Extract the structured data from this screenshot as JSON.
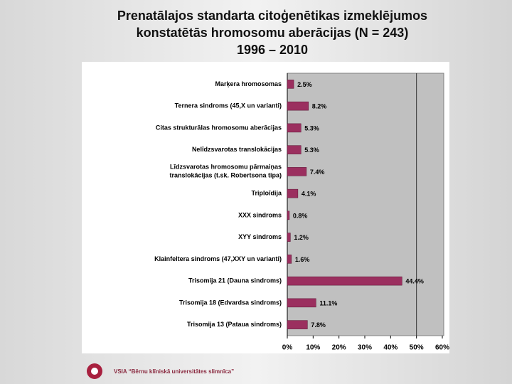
{
  "chart_data": {
    "type": "barh",
    "title": [
      "Prenatālajos standarta citoģenētikas izmeklējumos",
      "konstatētās hromosomu aberācijas (N = 243)",
      "1996 – 2010"
    ],
    "categories": [
      "Marķera hromosomas",
      "Ternera sindroms (45,X un varianti)",
      "Citas strukturālas hromosomu aberācijas",
      "Nelīdzsvarotas translokācijas",
      "Līdzsvarotas hromosomu pārmaiņas\ntranslokācijas (t.sk. Robertsona tipa)",
      "Triploīdija",
      "XXX sindroms",
      "XYY sindroms",
      "Klainfeltera sindroms (47,XXY un varianti)",
      "Trisomija 21 (Dauna sindroms)",
      "Trisomija 18 (Edvardsa sindroms)",
      "Trisomija 13 (Pataua sindroms)"
    ],
    "values": [
      2.5,
      8.2,
      5.3,
      5.3,
      7.4,
      4.1,
      0.8,
      1.2,
      1.6,
      44.4,
      11.1,
      7.8
    ],
    "value_labels": [
      "2.5%",
      "8.2%",
      "5.3%",
      "5.3%",
      "7.4%",
      "4.1%",
      "0.8%",
      "1.2%",
      "1.6%",
      "44.4%",
      "11.1%",
      "7.8%"
    ],
    "color": "#9b2f5f",
    "xlim": [
      0,
      60
    ],
    "xticks": [
      {
        "value": 0,
        "label": "0%"
      },
      {
        "value": 10,
        "label": "10%"
      },
      {
        "value": 20,
        "label": "20%"
      },
      {
        "value": 30,
        "label": "30%"
      },
      {
        "value": 40,
        "label": "40%"
      },
      {
        "value": 50,
        "label": "50%"
      },
      {
        "value": 60,
        "label": "60%"
      }
    ],
    "footer": "VSIA “Bērnu klīniskā universitātes slimnīca”"
  }
}
